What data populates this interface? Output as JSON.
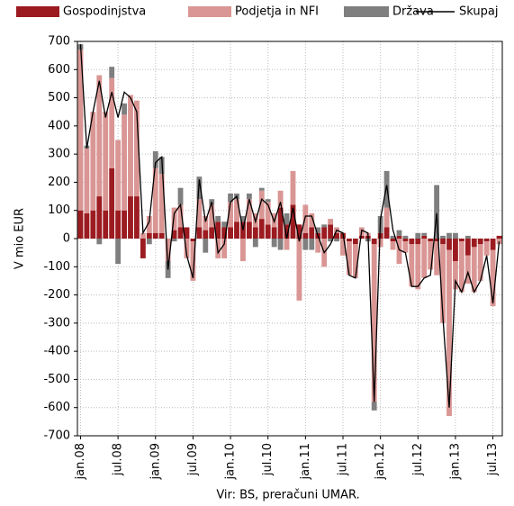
{
  "chart_data": {
    "type": "bar",
    "stacked": true,
    "y_label": "V mio EUR",
    "source": "Vir: BS, preračuni UMAR.",
    "categories": [
      "jan.08",
      null,
      null,
      null,
      null,
      null,
      "jul.08",
      null,
      null,
      null,
      null,
      null,
      "jan.09",
      null,
      null,
      null,
      null,
      null,
      "jul.09",
      null,
      null,
      null,
      null,
      null,
      "jan.10",
      null,
      null,
      null,
      null,
      null,
      "jul.10",
      null,
      null,
      null,
      null,
      null,
      "jan.11",
      null,
      null,
      null,
      null,
      null,
      "jul.11",
      null,
      null,
      null,
      null,
      null,
      "jan.12",
      null,
      null,
      null,
      null,
      null,
      "jul.12",
      null,
      null,
      null,
      null,
      null,
      "jan.13",
      null,
      null,
      null,
      null,
      null,
      "jul.13",
      null
    ],
    "series": [
      {
        "name": "Gospodinjstva",
        "color": "#9b1b20",
        "values": [
          100,
          90,
          100,
          150,
          100,
          250,
          100,
          100,
          150,
          150,
          -70,
          20,
          20,
          20,
          0,
          30,
          40,
          40,
          -10,
          40,
          30,
          40,
          60,
          40,
          40,
          60,
          60,
          60,
          40,
          70,
          50,
          40,
          110,
          50,
          120,
          50,
          20,
          40,
          20,
          40,
          50,
          20,
          20,
          -10,
          -20,
          10,
          10,
          -20,
          20,
          40,
          -10,
          10,
          -10,
          -20,
          -20,
          10,
          -10,
          -10,
          -20,
          -40,
          -80,
          -10,
          -60,
          -30,
          -20,
          -10,
          -40,
          10
        ]
      },
      {
        "name": "Podjetja in NFI",
        "color": "#d99694",
        "values": [
          570,
          230,
          350,
          430,
          350,
          320,
          250,
          340,
          360,
          340,
          20,
          60,
          230,
          210,
          -80,
          80,
          80,
          -70,
          -140,
          100,
          50,
          80,
          -70,
          -70,
          90,
          80,
          -80,
          80,
          50,
          100,
          80,
          50,
          60,
          -40,
          120,
          -220,
          100,
          50,
          -50,
          -100,
          20,
          20,
          -60,
          -120,
          -120,
          30,
          10,
          -560,
          -30,
          70,
          -30,
          -90,
          -40,
          -150,
          -160,
          -140,
          -100,
          -120,
          -280,
          -590,
          -100,
          -180,
          -100,
          -160,
          -130,
          -50,
          -200,
          -20
        ]
      },
      {
        "name": "Država",
        "color": "#7f7f7f",
        "values": [
          20,
          10,
          0,
          -20,
          0,
          40,
          -90,
          40,
          0,
          0,
          0,
          -20,
          60,
          60,
          -60,
          -10,
          60,
          0,
          0,
          80,
          -50,
          20,
          20,
          20,
          30,
          20,
          20,
          20,
          -30,
          10,
          10,
          -30,
          -40,
          40,
          0,
          0,
          -40,
          -40,
          20,
          10,
          -10,
          -10,
          0,
          0,
          0,
          0,
          -10,
          -30,
          60,
          130,
          10,
          20,
          10,
          0,
          20,
          10,
          0,
          190,
          10,
          20,
          20,
          0,
          10,
          0,
          0,
          0,
          0,
          0
        ]
      },
      {
        "name": "Skupaj",
        "type": "line",
        "color": "#000000",
        "values": [
          690,
          320,
          450,
          560,
          430,
          520,
          430,
          520,
          500,
          450,
          20,
          60,
          270,
          290,
          -110,
          90,
          120,
          -60,
          -140,
          210,
          60,
          130,
          -50,
          -20,
          130,
          150,
          30,
          140,
          60,
          140,
          120,
          60,
          130,
          0,
          110,
          -10,
          80,
          80,
          10,
          -50,
          -20,
          30,
          20,
          -130,
          -140,
          30,
          20,
          -580,
          70,
          190,
          30,
          -40,
          -50,
          -170,
          -170,
          -140,
          -130,
          90,
          -280,
          -600,
          -150,
          -190,
          -120,
          -190,
          -150,
          -60,
          -230,
          -10
        ]
      }
    ],
    "ylim": [
      -700,
      700
    ],
    "yticks": [
      -700,
      -600,
      -500,
      -400,
      -300,
      -200,
      -100,
      0,
      100,
      200,
      300,
      400,
      500,
      600,
      700
    ],
    "grid": true
  }
}
